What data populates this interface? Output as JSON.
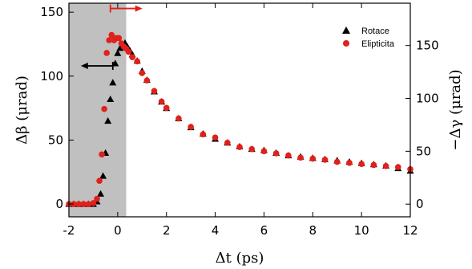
{
  "chart_data": {
    "type": "scatter",
    "xlabel": "Δt (ps)",
    "ylabel_left": "Δβ (μrad)",
    "ylabel_right": "−Δγ (μrad)",
    "xlim": [
      -2,
      12
    ],
    "ylim_left": [
      -10,
      157
    ],
    "ylim_right": [
      -12,
      190
    ],
    "x_ticks": [
      -2,
      0,
      2,
      4,
      6,
      8,
      10,
      12
    ],
    "y_ticks_left": [
      0,
      50,
      100,
      150
    ],
    "y_ticks_right": [
      0,
      50,
      100,
      150
    ],
    "shaded_region": [
      -2,
      0.35
    ],
    "legend": {
      "placement": "top-right"
    },
    "annotations": [
      {
        "type": "arrow-left",
        "x": -0.2,
        "y": 108,
        "axis": "left",
        "color": "#000000"
      },
      {
        "type": "arrow-right",
        "x": -0.3,
        "y": 185,
        "axis": "right",
        "color": "#e0201b"
      }
    ],
    "series": [
      {
        "name": "Rotace",
        "marker": "triangle",
        "color": "#000000",
        "axis": "left",
        "x": [
          -2.0,
          -1.8,
          -1.6,
          -1.4,
          -1.2,
          -1.0,
          -0.85,
          -0.7,
          -0.6,
          -0.5,
          -0.4,
          -0.3,
          -0.2,
          -0.1,
          0.0,
          0.1,
          0.2,
          0.3,
          0.4,
          0.5,
          0.6,
          0.8,
          1.0,
          1.2,
          1.5,
          1.8,
          2.0,
          2.5,
          3.0,
          3.5,
          4.0,
          4.5,
          5.0,
          5.5,
          6.0,
          6.5,
          7.0,
          7.5,
          8.0,
          8.5,
          9.0,
          9.5,
          10.0,
          10.5,
          11.0,
          11.5,
          12.0
        ],
        "values": [
          0,
          0,
          0,
          0,
          0,
          0,
          2,
          8,
          22,
          40,
          65,
          82,
          95,
          110,
          118,
          122,
          124,
          126,
          123,
          120,
          117,
          112,
          104,
          97,
          88,
          80,
          75,
          67,
          60,
          55,
          51,
          48,
          45,
          43,
          42,
          40,
          38,
          37,
          36,
          35,
          34,
          33,
          32,
          31,
          30,
          28,
          26
        ]
      },
      {
        "name": "Elipticita",
        "marker": "circle",
        "color": "#e0201b",
        "axis": "right",
        "x": [
          -2.0,
          -1.8,
          -1.6,
          -1.4,
          -1.2,
          -1.0,
          -0.85,
          -0.75,
          -0.65,
          -0.55,
          -0.45,
          -0.35,
          -0.25,
          -0.15,
          -0.05,
          0.05,
          0.15,
          0.25,
          0.35,
          0.45,
          0.6,
          0.8,
          1.0,
          1.2,
          1.5,
          1.8,
          2.0,
          2.5,
          3.0,
          3.5,
          4.0,
          4.5,
          5.0,
          5.5,
          6.0,
          6.5,
          7.0,
          7.5,
          8.0,
          8.5,
          9.0,
          9.5,
          10.0,
          10.5,
          11.0,
          11.5,
          12.0
        ],
        "values": [
          0,
          0,
          0,
          0,
          0,
          1,
          5,
          22,
          47,
          90,
          143,
          155,
          160,
          155,
          157,
          157,
          152,
          149,
          147,
          144,
          139,
          135,
          124,
          117,
          107,
          97,
          91,
          81,
          73,
          66,
          63,
          58,
          54,
          52,
          50,
          48,
          46,
          44,
          43,
          42,
          40,
          39,
          38,
          37,
          36,
          35,
          33
        ]
      }
    ]
  }
}
